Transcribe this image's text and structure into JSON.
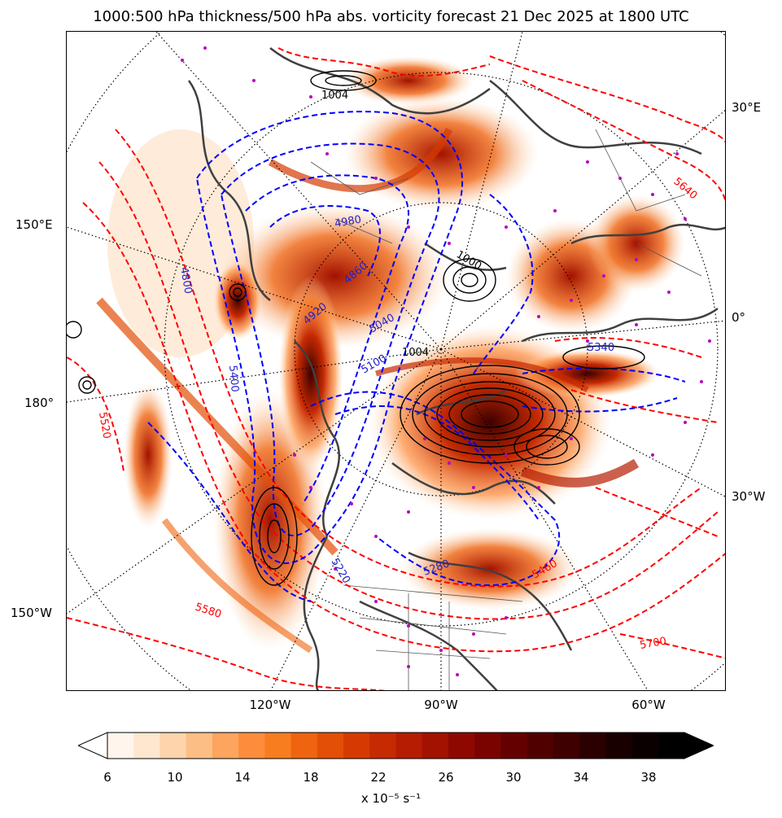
{
  "title": "1000:500 hPa thickness/500 hPa abs. vorticity forecast 21 Dec 2025 at 1800 UTC",
  "lon_labels_bottom": [
    "120°W",
    "90°W",
    "60°W"
  ],
  "lon_labels_left": [
    "150°E",
    "180°",
    "150°W"
  ],
  "lon_labels_right": [
    "30°E",
    "0°",
    "30°W"
  ],
  "contour_labels_thickness_red": [
    "5640",
    "5520",
    "5580",
    "5460",
    "5700"
  ],
  "contour_labels_thickness_blue": [
    "4980",
    "4860",
    "4920",
    "5040",
    "5100",
    "5340",
    "5400",
    "5220",
    "5280",
    "4800"
  ],
  "contour_labels_pressure_black": [
    "1004",
    "1000",
    "1004"
  ],
  "colorbar": {
    "ticks": [
      "6",
      "10",
      "14",
      "18",
      "22",
      "26",
      "30",
      "34",
      "38"
    ],
    "label": "x 10⁻⁵ s⁻¹",
    "colors": [
      "#fff5ec",
      "#fee6cf",
      "#fdd4ab",
      "#fdbe85",
      "#fda55e",
      "#fd8d3c",
      "#f87d1e",
      "#ef6410",
      "#e34f06",
      "#d63a02",
      "#c62a02",
      "#b51c01",
      "#a31100",
      "#8f0800",
      "#7a0300",
      "#650000",
      "#510000",
      "#3e0000",
      "#2b0000",
      "#180000",
      "#0a0000",
      "#000000"
    ]
  },
  "colors": {
    "thickness_warm": "#ff0000",
    "thickness_cold": "#0000ff",
    "pressure": "#000000",
    "coastline": "#404040",
    "markers": "#bb00bb"
  }
}
